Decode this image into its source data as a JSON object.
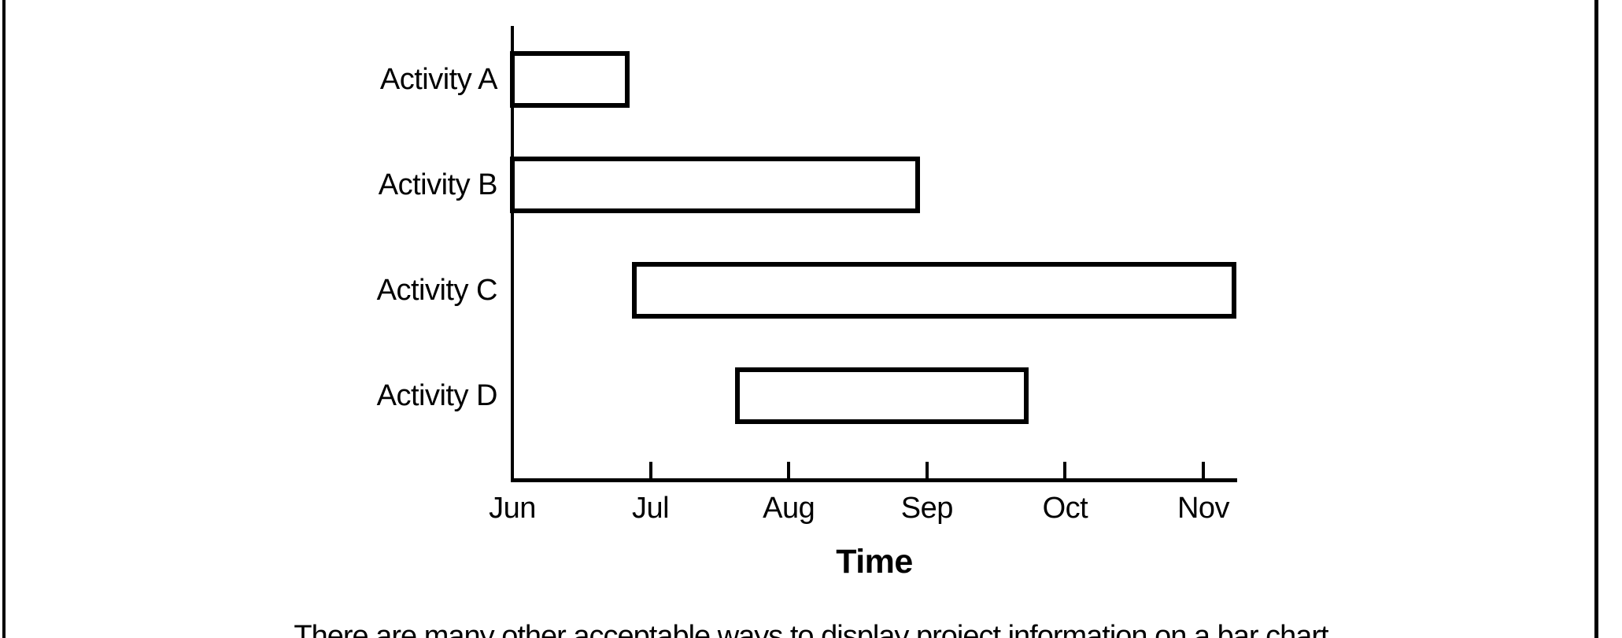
{
  "page": {
    "background": "#ffffff",
    "border_color": "#000000",
    "caption": "There are many other acceptable ways to display project information on a bar chart"
  },
  "chart_data": {
    "type": "bar",
    "subtype": "gantt",
    "orientation": "horizontal",
    "title": "",
    "xlabel": "Time",
    "ylabel": "",
    "categories": [
      "Activity A",
      "Activity B",
      "Activity C",
      "Activity D"
    ],
    "x_ticklabels": [
      "Jun",
      "Jul",
      "Aug",
      "Sep",
      "Oct",
      "Nov"
    ],
    "x_unit": "months_after_Jun",
    "xlim_months": [
      0,
      5.25
    ],
    "grid": false,
    "legend": false,
    "bar_fill": "#ffffff",
    "bar_border_color": "#000000",
    "series": [
      {
        "name": "Activity A",
        "start": 0.0,
        "end": 0.83
      },
      {
        "name": "Activity B",
        "start": 0.0,
        "end": 2.93
      },
      {
        "name": "Activity C",
        "start": 0.88,
        "end": 5.22
      },
      {
        "name": "Activity D",
        "start": 1.63,
        "end": 3.72
      }
    ]
  }
}
